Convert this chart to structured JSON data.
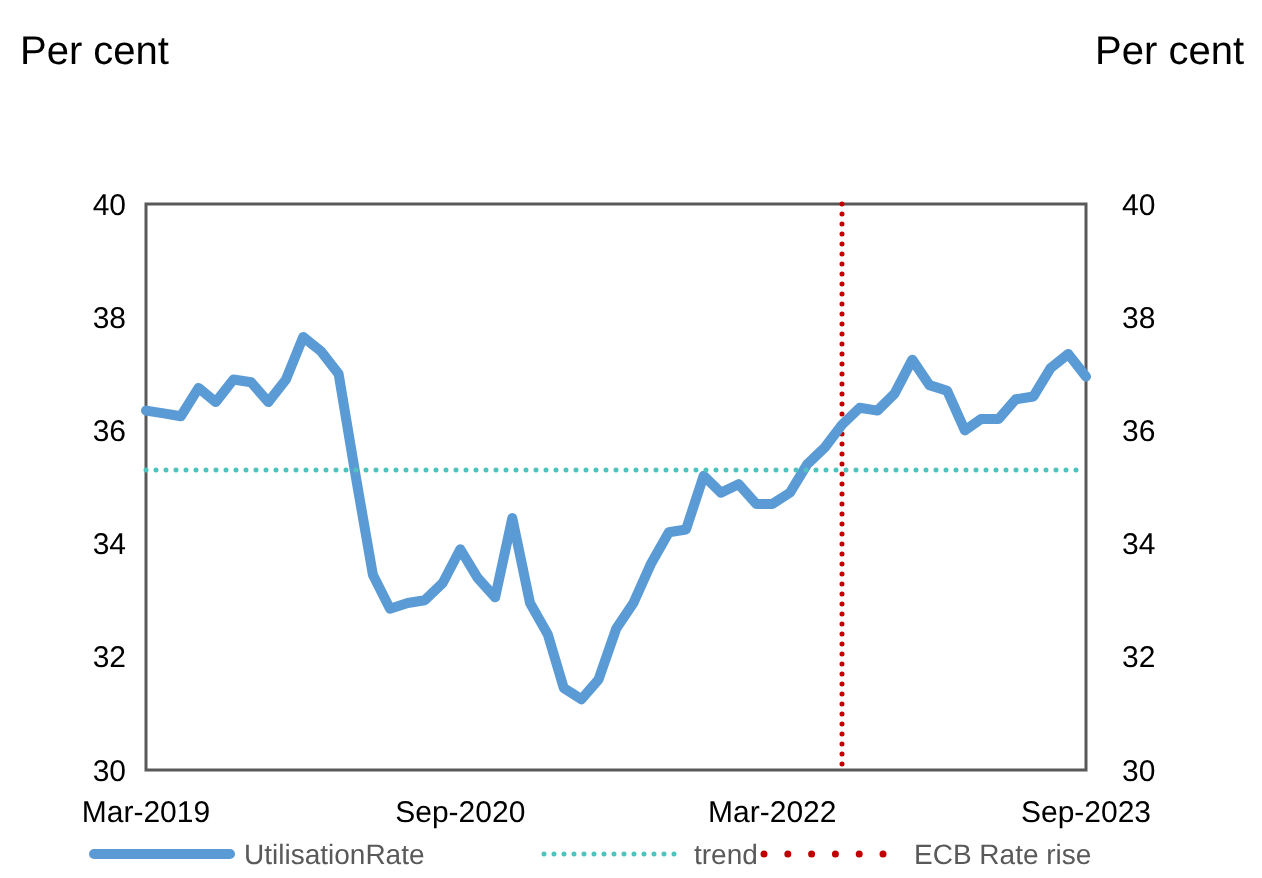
{
  "chart_data": {
    "type": "line",
    "ylabel": "Per cent",
    "y2label": "Per cent",
    "x": [
      "2019-03",
      "2019-04",
      "2019-05",
      "2019-06",
      "2019-07",
      "2019-08",
      "2019-09",
      "2019-10",
      "2019-11",
      "2019-12",
      "2020-01",
      "2020-02",
      "2020-03",
      "2020-04",
      "2020-05",
      "2020-06",
      "2020-07",
      "2020-08",
      "2020-09",
      "2020-10",
      "2020-11",
      "2020-12",
      "2021-01",
      "2021-02",
      "2021-03",
      "2021-04",
      "2021-05",
      "2021-06",
      "2021-07",
      "2021-08",
      "2021-09",
      "2021-10",
      "2021-11",
      "2021-12",
      "2022-01",
      "2022-02",
      "2022-03",
      "2022-04",
      "2022-05",
      "2022-06",
      "2022-07",
      "2022-08",
      "2022-09",
      "2022-10",
      "2022-11",
      "2022-12",
      "2023-01",
      "2023-02",
      "2023-03",
      "2023-04",
      "2023-05",
      "2023-06",
      "2023-07",
      "2023-08",
      "2023-09"
    ],
    "series": [
      {
        "name": "UtilisationRate",
        "color": "#5b9bd5",
        "line_style": "solid",
        "values": [
          36.35,
          36.3,
          36.25,
          36.75,
          36.5,
          36.9,
          36.85,
          36.5,
          36.9,
          37.65,
          37.4,
          37.0,
          35.25,
          33.45,
          32.85,
          32.95,
          33.0,
          33.3,
          33.9,
          33.4,
          33.05,
          34.45,
          32.95,
          32.4,
          31.45,
          31.25,
          31.6,
          32.5,
          32.95,
          33.65,
          34.2,
          34.25,
          35.2,
          34.9,
          35.05,
          34.7,
          34.7,
          34.9,
          35.4,
          35.7,
          36.1,
          36.4,
          36.35,
          36.65,
          37.25,
          36.8,
          36.7,
          36.0,
          36.2,
          36.2,
          36.55,
          36.6,
          37.1,
          37.35,
          36.95
        ]
      },
      {
        "name": "trend",
        "color": "#4fc3bd",
        "line_style": "dotted",
        "x": [
          "2019-03",
          "2023-09"
        ],
        "values": [
          35.3,
          35.3
        ]
      }
    ],
    "ref_lines": [
      {
        "axis": "x",
        "value": "2022-07",
        "label": "ECB Rate rise",
        "color": "#c00000",
        "line_style": "dotted"
      }
    ],
    "xlim": [
      "2019-03",
      "2023-09"
    ],
    "xticks": [
      {
        "value": "2019-03",
        "label": "Mar-2019"
      },
      {
        "value": "2020-09",
        "label": "Sep-2020"
      },
      {
        "value": "2022-03",
        "label": "Mar-2022"
      },
      {
        "value": "2023-09",
        "label": "Sep-2023"
      }
    ],
    "ylim": [
      30,
      40
    ],
    "yticks": [
      30,
      32,
      34,
      36,
      38,
      40
    ],
    "y2lim": [
      30,
      40
    ],
    "y2ticks": [
      30,
      32,
      34,
      36,
      38,
      40
    ],
    "grid": false,
    "legend": "bottom"
  }
}
